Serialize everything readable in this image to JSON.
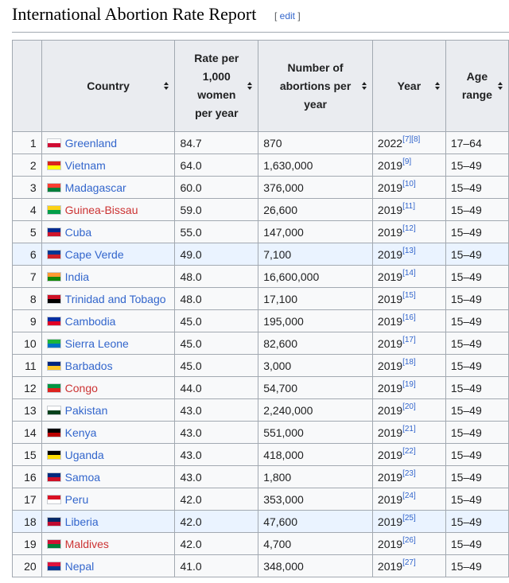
{
  "heading": {
    "title": "International Abortion Rate Report",
    "edit_open": "[ ",
    "edit_label": "edit",
    "edit_close": " ]"
  },
  "table": {
    "headers": {
      "country": "Country",
      "rate": "Rate per 1,000 women per year",
      "abortions": "Number of abortions per year",
      "year": "Year",
      "age": "Age range"
    },
    "rows": [
      {
        "rank": "1",
        "country": "Greenland",
        "rate": "84.7",
        "abortions": "870",
        "year": "2022",
        "refs": "[7][8]",
        "age": "17–64",
        "flag_colors": [
          "#ffffff",
          "#d00c33"
        ],
        "link_color": "blue"
      },
      {
        "rank": "2",
        "country": "Vietnam",
        "rate": "64.0",
        "abortions": "1,630,000",
        "year": "2019",
        "refs": "[9]",
        "age": "15–49",
        "flag_colors": [
          "#da251d",
          "#ffff00"
        ],
        "link_color": "blue"
      },
      {
        "rank": "3",
        "country": "Madagascar",
        "rate": "60.0",
        "abortions": "376,000",
        "year": "2019",
        "refs": "[10]",
        "age": "15–49",
        "flag_colors": [
          "#fc3d32",
          "#007e3a"
        ],
        "link_color": "blue"
      },
      {
        "rank": "4",
        "country": "Guinea-Bissau",
        "rate": "59.0",
        "abortions": "26,600",
        "year": "2019",
        "refs": "[11]",
        "age": "15–49",
        "flag_colors": [
          "#fcd116",
          "#009e49"
        ],
        "link_color": "red"
      },
      {
        "rank": "5",
        "country": "Cuba",
        "rate": "55.0",
        "abortions": "147,000",
        "year": "2019",
        "refs": "[12]",
        "age": "15–49",
        "flag_colors": [
          "#002a8f",
          "#cf142b"
        ],
        "link_color": "blue"
      },
      {
        "rank": "6",
        "country": "Cape Verde",
        "rate": "49.0",
        "abortions": "7,100",
        "year": "2019",
        "refs": "[13]",
        "age": "15–49",
        "flag_colors": [
          "#003893",
          "#cf2027"
        ],
        "link_color": "blue",
        "highlight": true
      },
      {
        "rank": "7",
        "country": "India",
        "rate": "48.0",
        "abortions": "16,600,000",
        "year": "2019",
        "refs": "[14]",
        "age": "15–49",
        "flag_colors": [
          "#ff9933",
          "#138808"
        ],
        "link_color": "blue"
      },
      {
        "rank": "8",
        "country": "Trinidad and Tobago",
        "rate": "48.0",
        "abortions": "17,100",
        "year": "2019",
        "refs": "[15]",
        "age": "15–49",
        "flag_colors": [
          "#ce1126",
          "#000000"
        ],
        "link_color": "blue"
      },
      {
        "rank": "9",
        "country": "Cambodia",
        "rate": "45.0",
        "abortions": "195,000",
        "year": "2019",
        "refs": "[16]",
        "age": "15–49",
        "flag_colors": [
          "#032ea1",
          "#e00025"
        ],
        "link_color": "blue"
      },
      {
        "rank": "10",
        "country": "Sierra Leone",
        "rate": "45.0",
        "abortions": "82,600",
        "year": "2019",
        "refs": "[17]",
        "age": "15–49",
        "flag_colors": [
          "#1eb53a",
          "#0072c6"
        ],
        "link_color": "blue"
      },
      {
        "rank": "11",
        "country": "Barbados",
        "rate": "45.0",
        "abortions": "3,000",
        "year": "2019",
        "refs": "[18]",
        "age": "15–49",
        "flag_colors": [
          "#00267f",
          "#ffc726"
        ],
        "link_color": "blue"
      },
      {
        "rank": "12",
        "country": "Congo",
        "rate": "44.0",
        "abortions": "54,700",
        "year": "2019",
        "refs": "[19]",
        "age": "15–49",
        "flag_colors": [
          "#009543",
          "#dc241f"
        ],
        "link_color": "red"
      },
      {
        "rank": "13",
        "country": "Pakistan",
        "rate": "43.0",
        "abortions": "2,240,000",
        "year": "2019",
        "refs": "[20]",
        "age": "15–49",
        "flag_colors": [
          "#ffffff",
          "#01411c"
        ],
        "link_color": "blue"
      },
      {
        "rank": "14",
        "country": "Kenya",
        "rate": "43.0",
        "abortions": "551,000",
        "year": "2019",
        "refs": "[21]",
        "age": "15–49",
        "flag_colors": [
          "#000000",
          "#bb0000"
        ],
        "link_color": "blue"
      },
      {
        "rank": "15",
        "country": "Uganda",
        "rate": "43.0",
        "abortions": "418,000",
        "year": "2019",
        "refs": "[22]",
        "age": "15–49",
        "flag_colors": [
          "#000000",
          "#fcdc04"
        ],
        "link_color": "blue"
      },
      {
        "rank": "16",
        "country": "Samoa",
        "rate": "43.0",
        "abortions": "1,800",
        "year": "2019",
        "refs": "[23]",
        "age": "15–49",
        "flag_colors": [
          "#002b7f",
          "#ce1126"
        ],
        "link_color": "blue"
      },
      {
        "rank": "17",
        "country": "Peru",
        "rate": "42.0",
        "abortions": "353,000",
        "year": "2019",
        "refs": "[24]",
        "age": "15–49",
        "flag_colors": [
          "#d91023",
          "#ffffff"
        ],
        "link_color": "blue"
      },
      {
        "rank": "18",
        "country": "Liberia",
        "rate": "42.0",
        "abortions": "47,600",
        "year": "2019",
        "refs": "[25]",
        "age": "15–49",
        "flag_colors": [
          "#002868",
          "#bf0a30"
        ],
        "link_color": "blue",
        "highlight": true
      },
      {
        "rank": "19",
        "country": "Maldives",
        "rate": "42.0",
        "abortions": "4,700",
        "year": "2019",
        "refs": "[26]",
        "age": "15–49",
        "flag_colors": [
          "#d21034",
          "#007e3a"
        ],
        "link_color": "red"
      },
      {
        "rank": "20",
        "country": "Nepal",
        "rate": "41.0",
        "abortions": "348,000",
        "year": "2019",
        "refs": "[27]",
        "age": "15–49",
        "flag_colors": [
          "#dc143c",
          "#003893"
        ],
        "link_color": "blue"
      }
    ]
  },
  "colors": {
    "link": "#3366cc",
    "red_link": "#cc3333",
    "header_bg": "#eaecf0",
    "highlight_row": "#eaf3ff"
  }
}
